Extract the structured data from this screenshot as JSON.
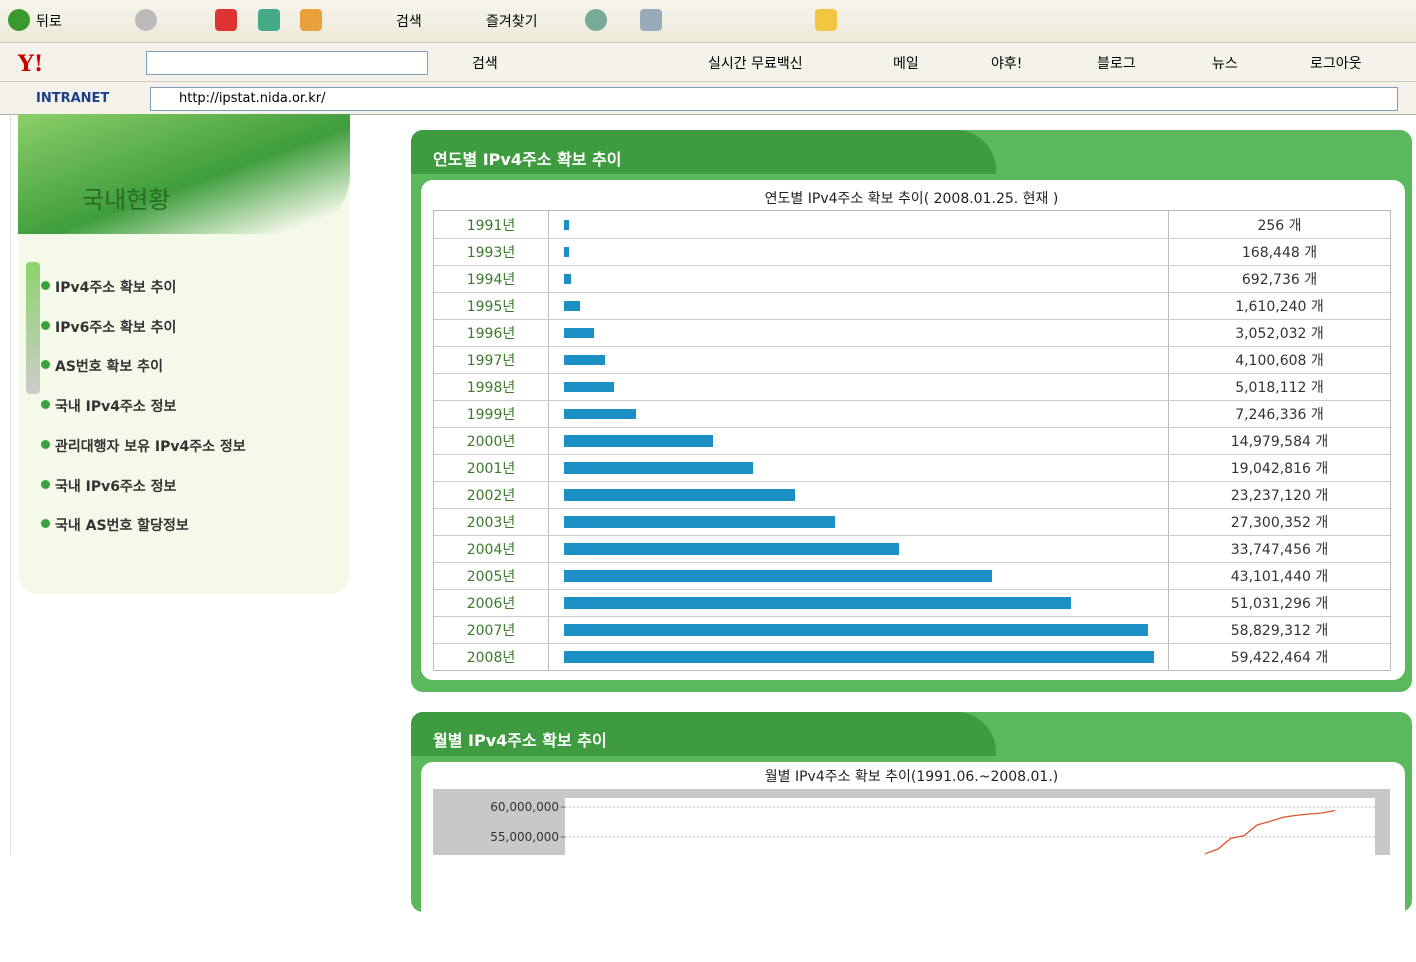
{
  "toolbar": {
    "back": "뒤로",
    "search": "검색",
    "favorites": "즐겨찾기"
  },
  "yahoo_bar": {
    "search": "검색",
    "items": [
      "실시간 무료백신",
      "메일",
      "야후!",
      "블로그",
      "뉴스",
      "로그아웃"
    ]
  },
  "address": {
    "label": "INTRANET",
    "url": "http://ipstat.nida.or.kr/"
  },
  "sidebar": {
    "title": "국내현황",
    "menu": [
      "IPv4주소 확보 추이",
      "IPv6주소 확보 추이",
      "AS번호 확보 추이",
      "국내 IPv4주소 정보",
      "관리대행자 보유 IPv4주소 정보",
      "국내 IPv6주소 정보",
      "국내 AS번호 할당정보"
    ]
  },
  "yearly": {
    "heading": "연도별 IPv4주소 확보 추이",
    "caption": "연도별 IPv4주소 확보 추이( 2008.01.25. 현재 )",
    "rows": [
      {
        "year": "1991년",
        "value": 256,
        "label": "256 개"
      },
      {
        "year": "1993년",
        "value": 168448,
        "label": "168,448 개"
      },
      {
        "year": "1994년",
        "value": 692736,
        "label": "692,736 개"
      },
      {
        "year": "1995년",
        "value": 1610240,
        "label": "1,610,240 개"
      },
      {
        "year": "1996년",
        "value": 3052032,
        "label": "3,052,032 개"
      },
      {
        "year": "1997년",
        "value": 4100608,
        "label": "4,100,608 개"
      },
      {
        "year": "1998년",
        "value": 5018112,
        "label": "5,018,112 개"
      },
      {
        "year": "1999년",
        "value": 7246336,
        "label": "7,246,336 개"
      },
      {
        "year": "2000년",
        "value": 14979584,
        "label": "14,979,584 개"
      },
      {
        "year": "2001년",
        "value": 19042816,
        "label": "19,042,816 개"
      },
      {
        "year": "2002년",
        "value": 23237120,
        "label": "23,237,120 개"
      },
      {
        "year": "2003년",
        "value": 27300352,
        "label": "27,300,352 개"
      },
      {
        "year": "2004년",
        "value": 33747456,
        "label": "33,747,456 개"
      },
      {
        "year": "2005년",
        "value": 43101440,
        "label": "43,101,440 개"
      },
      {
        "year": "2006년",
        "value": 51031296,
        "label": "51,031,296 개"
      },
      {
        "year": "2007년",
        "value": 58829312,
        "label": "58,829,312 개"
      },
      {
        "year": "2008년",
        "value": 59422464,
        "label": "59,422,464 개"
      }
    ]
  },
  "monthly": {
    "heading": "월별 IPv4주소 확보 추이",
    "chart_data": {
      "type": "line",
      "title": "월별 IPv4주소 확보 추이(1991.06.~2008.01.)",
      "ylim": [
        0,
        61500000
      ],
      "yticks": [
        {
          "value": 60000000,
          "label": "60,000,000"
        },
        {
          "value": 55000000,
          "label": "55,000,000"
        }
      ],
      "series": [
        {
          "color": "#e2542a",
          "values": [
            52200000,
            53000000,
            54800000,
            55200000,
            57000000,
            57600000,
            58300000,
            58600000,
            58829312,
            59000000,
            59422464
          ]
        }
      ]
    }
  }
}
